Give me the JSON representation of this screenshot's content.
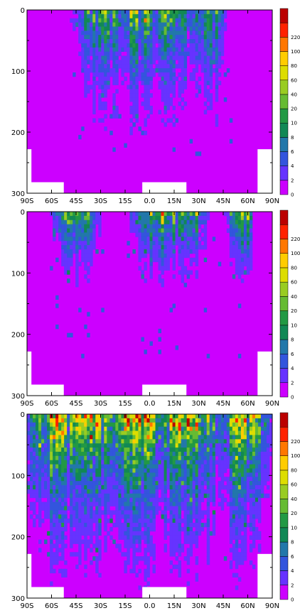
{
  "chart_data": [
    {
      "type": "heatmap",
      "panel": 1,
      "x_ticks": [
        "90S",
        "60S",
        "45S",
        "30S",
        "15S",
        "0.0",
        "15N",
        "30N",
        "45N",
        "60N",
        "90N"
      ],
      "y_ticks": [
        "0",
        "100",
        "200",
        "300"
      ],
      "ylim": [
        300,
        0
      ],
      "color_levels": [
        "0",
        "2",
        "4",
        "6",
        "8",
        "10",
        "20",
        "40",
        "60",
        "80",
        "100",
        "220"
      ],
      "colors": [
        "#cc00ff",
        "#6633ff",
        "#3355dd",
        "#2277aa",
        "#118855",
        "#229944",
        "#66bb33",
        "#99cc22",
        "#dddd00",
        "#ffcc00",
        "#ff7700",
        "#ff2200",
        "#bb0000"
      ],
      "background_level": "0-2",
      "ocean_floor_mask": true
    },
    {
      "type": "heatmap",
      "panel": 2,
      "x_ticks": [
        "90S",
        "60S",
        "45S",
        "30S",
        "15S",
        "0.0",
        "15N",
        "30N",
        "45N",
        "60N",
        "90N"
      ],
      "y_ticks": [
        "0",
        "100",
        "200",
        "300"
      ],
      "ylim": [
        300,
        0
      ],
      "color_levels": [
        "0",
        "2",
        "4",
        "6",
        "8",
        "10",
        "20",
        "40",
        "60",
        "80",
        "100",
        "220"
      ],
      "colors": [
        "#cc00ff",
        "#6633ff",
        "#3355dd",
        "#2277aa",
        "#118855",
        "#229944",
        "#66bb33",
        "#99cc22",
        "#dddd00",
        "#ffcc00",
        "#ff7700",
        "#ff2200",
        "#bb0000"
      ],
      "background_level": "0-2",
      "ocean_floor_mask": true
    },
    {
      "type": "heatmap",
      "panel": 3,
      "x_ticks": [
        "90S",
        "60S",
        "45S",
        "30S",
        "15S",
        "0.0",
        "15N",
        "30N",
        "45N",
        "60N",
        "90N"
      ],
      "y_ticks": [
        "0",
        "100",
        "200",
        "300"
      ],
      "ylim": [
        300,
        0
      ],
      "color_levels": [
        "0",
        "2",
        "4",
        "6",
        "8",
        "10",
        "20",
        "40",
        "60",
        "80",
        "100",
        "220"
      ],
      "colors": [
        "#cc00ff",
        "#6633ff",
        "#3355dd",
        "#2277aa",
        "#118855",
        "#229944",
        "#66bb33",
        "#99cc22",
        "#dddd00",
        "#ffcc00",
        "#ff7700",
        "#ff2200",
        "#bb0000"
      ],
      "background_level": "0-2",
      "ocean_floor_mask": true
    }
  ]
}
